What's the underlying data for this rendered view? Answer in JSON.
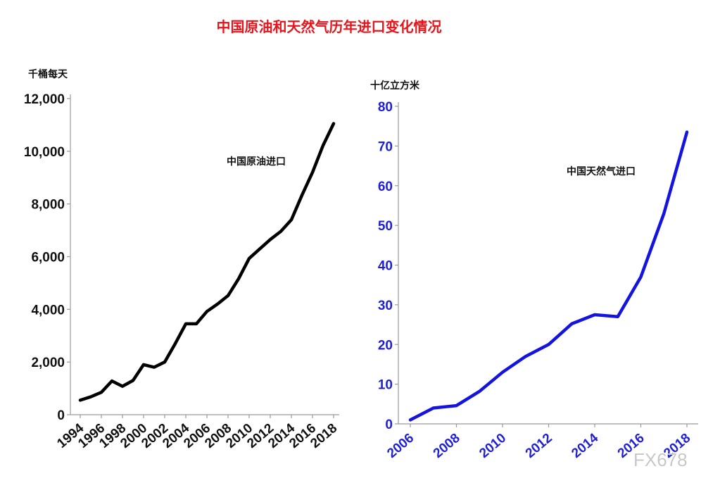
{
  "title": "中国原油和天然气历年进口变化情况",
  "watermark": "FX678",
  "chart_data": [
    {
      "type": "line",
      "ylabel": "千桶每天",
      "annotation": "中国原油进口",
      "color": "#000000",
      "tick_color": "#111111",
      "xlim": [
        1994,
        2018
      ],
      "ylim": [
        0,
        12000
      ],
      "yticks": [
        0,
        2000,
        4000,
        6000,
        8000,
        10000,
        12000
      ],
      "ytick_labels": [
        "0",
        "2,000",
        "4,000",
        "6,000",
        "8,000",
        "10,000",
        "12,000"
      ],
      "xtick_labels": [
        "1994",
        "1996",
        "1998",
        "2000",
        "2002",
        "2004",
        "2006",
        "2008",
        "2010",
        "2012",
        "2014",
        "2016",
        "2018"
      ],
      "series": [
        {
          "x": [
            1994,
            1995,
            1996,
            1997,
            1998,
            1999,
            2000,
            2001,
            2002,
            2003,
            2004,
            2005,
            2006,
            2007,
            2008,
            2009,
            2010,
            2011,
            2012,
            2013,
            2014,
            2015,
            2016,
            2017,
            2018
          ],
          "values": [
            550,
            680,
            850,
            1280,
            1080,
            1300,
            1900,
            1800,
            2000,
            2700,
            3450,
            3450,
            3920,
            4200,
            4520,
            5160,
            5930,
            6290,
            6650,
            6960,
            7400,
            8330,
            9200,
            10220,
            11050
          ]
        }
      ]
    },
    {
      "type": "line",
      "ylabel": "十亿立方米",
      "annotation": "中国天然气进口",
      "color": "#1414e0",
      "tick_color": "#1f1fd6",
      "xlim": [
        2006,
        2018
      ],
      "ylim": [
        0,
        80
      ],
      "yticks": [
        0,
        10,
        20,
        30,
        40,
        50,
        60,
        70,
        80
      ],
      "ytick_labels": [
        "0",
        "10",
        "20",
        "30",
        "40",
        "50",
        "60",
        "70",
        "80"
      ],
      "xtick_labels": [
        "2006",
        "2008",
        "2010",
        "2012",
        "2014",
        "2016",
        "2018"
      ],
      "series": [
        {
          "x": [
            2006,
            2007,
            2008,
            2009,
            2010,
            2011,
            2012,
            2013,
            2014,
            2015,
            2016,
            2017,
            2018
          ],
          "values": [
            1.0,
            4.0,
            4.6,
            8.2,
            13.0,
            17.0,
            20.0,
            25.2,
            27.5,
            27.0,
            37.0,
            53.0,
            73.5
          ]
        }
      ]
    }
  ]
}
